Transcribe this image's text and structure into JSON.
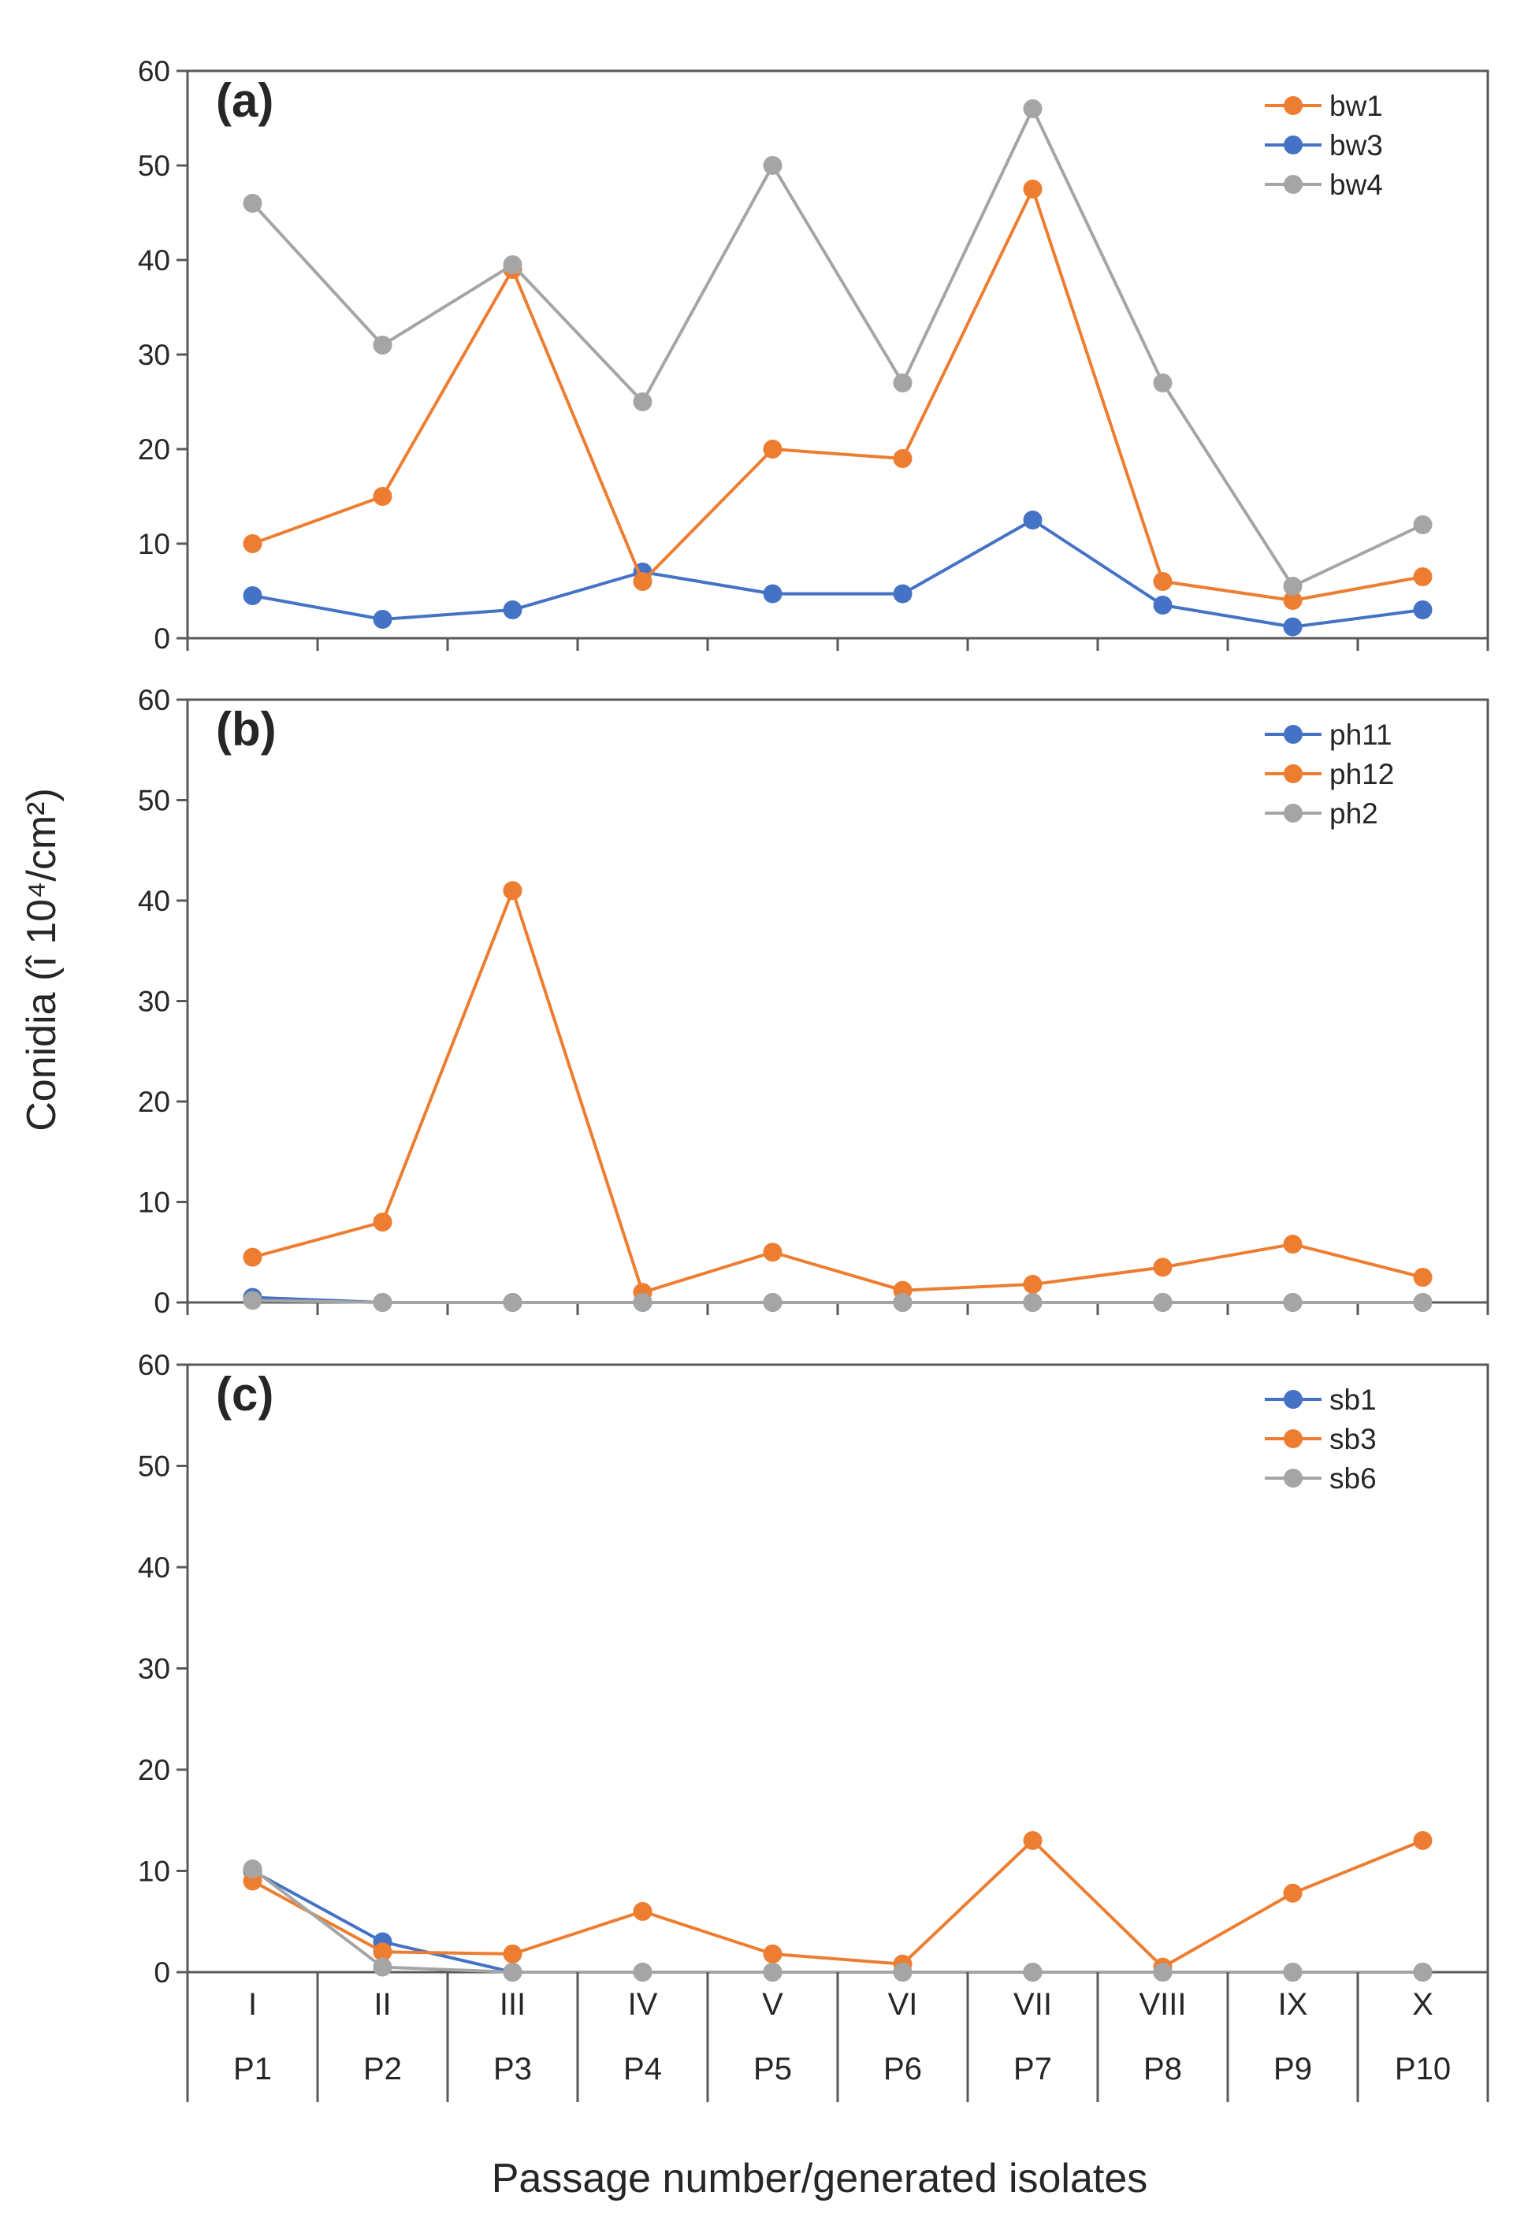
{
  "chart_data": {
    "type": "line",
    "ylabel": "Conidia (î 10⁴/cm²)",
    "xlabel": "Passage number/generated isolates",
    "ylim": [
      0,
      60
    ],
    "yticks": [
      "0",
      "10",
      "20",
      "30",
      "40",
      "50",
      "60"
    ],
    "categories": [
      "I",
      "II",
      "III",
      "IV",
      "V",
      "VI",
      "VII",
      "VIII",
      "IX",
      "X"
    ],
    "passages": [
      "P1",
      "P2",
      "P3",
      "P4",
      "P5",
      "P6",
      "P7",
      "P8",
      "P9",
      "P10"
    ],
    "colors": {
      "blue": "#4472c4",
      "orange": "#ed7d31",
      "gray": "#a5a5a5"
    },
    "legend_position": "top-right",
    "panels": [
      {
        "label": "(a)",
        "series": [
          {
            "name": "bw1",
            "color": "orange",
            "values": [
              10,
              15,
              39,
              6,
              20,
              19,
              47.5,
              6,
              4,
              6.5
            ]
          },
          {
            "name": "bw3",
            "color": "blue",
            "values": [
              4.5,
              2,
              3,
              7,
              4.7,
              4.7,
              12.5,
              3.5,
              1.2,
              3
            ]
          },
          {
            "name": "bw4",
            "color": "gray",
            "values": [
              46,
              31,
              39.5,
              25,
              50,
              27,
              56,
              27,
              5.5,
              12
            ]
          }
        ],
        "draw_order": [
          1,
          0,
          2
        ]
      },
      {
        "label": "(b)",
        "series": [
          {
            "name": "ph11",
            "color": "blue",
            "values": [
              0.5,
              0,
              0,
              0,
              0,
              0,
              0,
              0,
              0,
              0
            ]
          },
          {
            "name": "ph12",
            "color": "orange",
            "values": [
              4.5,
              8,
              41,
              1,
              5,
              1.2,
              1.8,
              3.5,
              5.8,
              2.5
            ]
          },
          {
            "name": "ph2",
            "color": "gray",
            "values": [
              0.2,
              0,
              0,
              0,
              0,
              0,
              0,
              0,
              0,
              0
            ]
          }
        ],
        "draw_order": [
          0,
          1,
          2
        ]
      },
      {
        "label": "(c)",
        "series": [
          {
            "name": "sb1",
            "color": "blue",
            "values": [
              10,
              3,
              0,
              0,
              0,
              0,
              0,
              0,
              0,
              0
            ]
          },
          {
            "name": "sb3",
            "color": "orange",
            "values": [
              9,
              2,
              1.8,
              6,
              1.8,
              0.8,
              13,
              0.5,
              7.8,
              13
            ]
          },
          {
            "name": "sb6",
            "color": "gray",
            "values": [
              10.2,
              0.5,
              0,
              0,
              0,
              0,
              0,
              0,
              0,
              0
            ]
          }
        ],
        "draw_order": [
          0,
          1,
          2
        ]
      }
    ]
  }
}
